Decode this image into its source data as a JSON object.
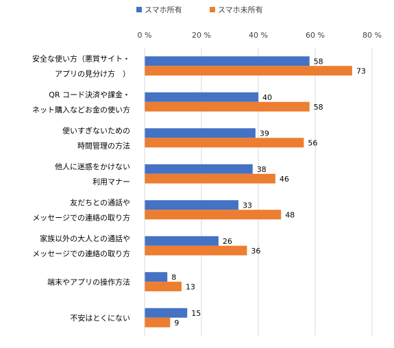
{
  "chart_data": {
    "type": "bar",
    "orientation": "horizontal",
    "title": "",
    "xlabel": "",
    "ylabel": "",
    "xlim": [
      0,
      80
    ],
    "tick_values": [
      0,
      20,
      40,
      60,
      80
    ],
    "tick_labels": [
      "0 %",
      "20 %",
      "40 %",
      "60 %",
      "80 %"
    ],
    "grid": true,
    "legend_position": "top",
    "categories": [
      [
        "安全な使い方（悪質サイト・",
        "アプリの見分け方　）"
      ],
      [
        "QR コード決済や課金・",
        "ネット購入などお金の使い方"
      ],
      [
        "使いすぎないための",
        "時間管理の方法"
      ],
      [
        "他人に迷惑をかけない",
        "利用マナー"
      ],
      [
        "友だちとの通話や",
        "メッセージでの連絡の取り方"
      ],
      [
        "家族以外の大人との通話や",
        "メッセージでの連絡の取り方"
      ],
      [
        "端末やアプリの操作方法"
      ],
      [
        "不安はとくにない"
      ]
    ],
    "series": [
      {
        "name": "スマホ所有",
        "color": "#4472C4",
        "values": [
          58,
          40,
          39,
          38,
          33,
          26,
          8,
          15
        ]
      },
      {
        "name": "スマホ未所有",
        "color": "#ED7D31",
        "values": [
          73,
          58,
          56,
          46,
          48,
          36,
          13,
          9
        ]
      }
    ]
  }
}
